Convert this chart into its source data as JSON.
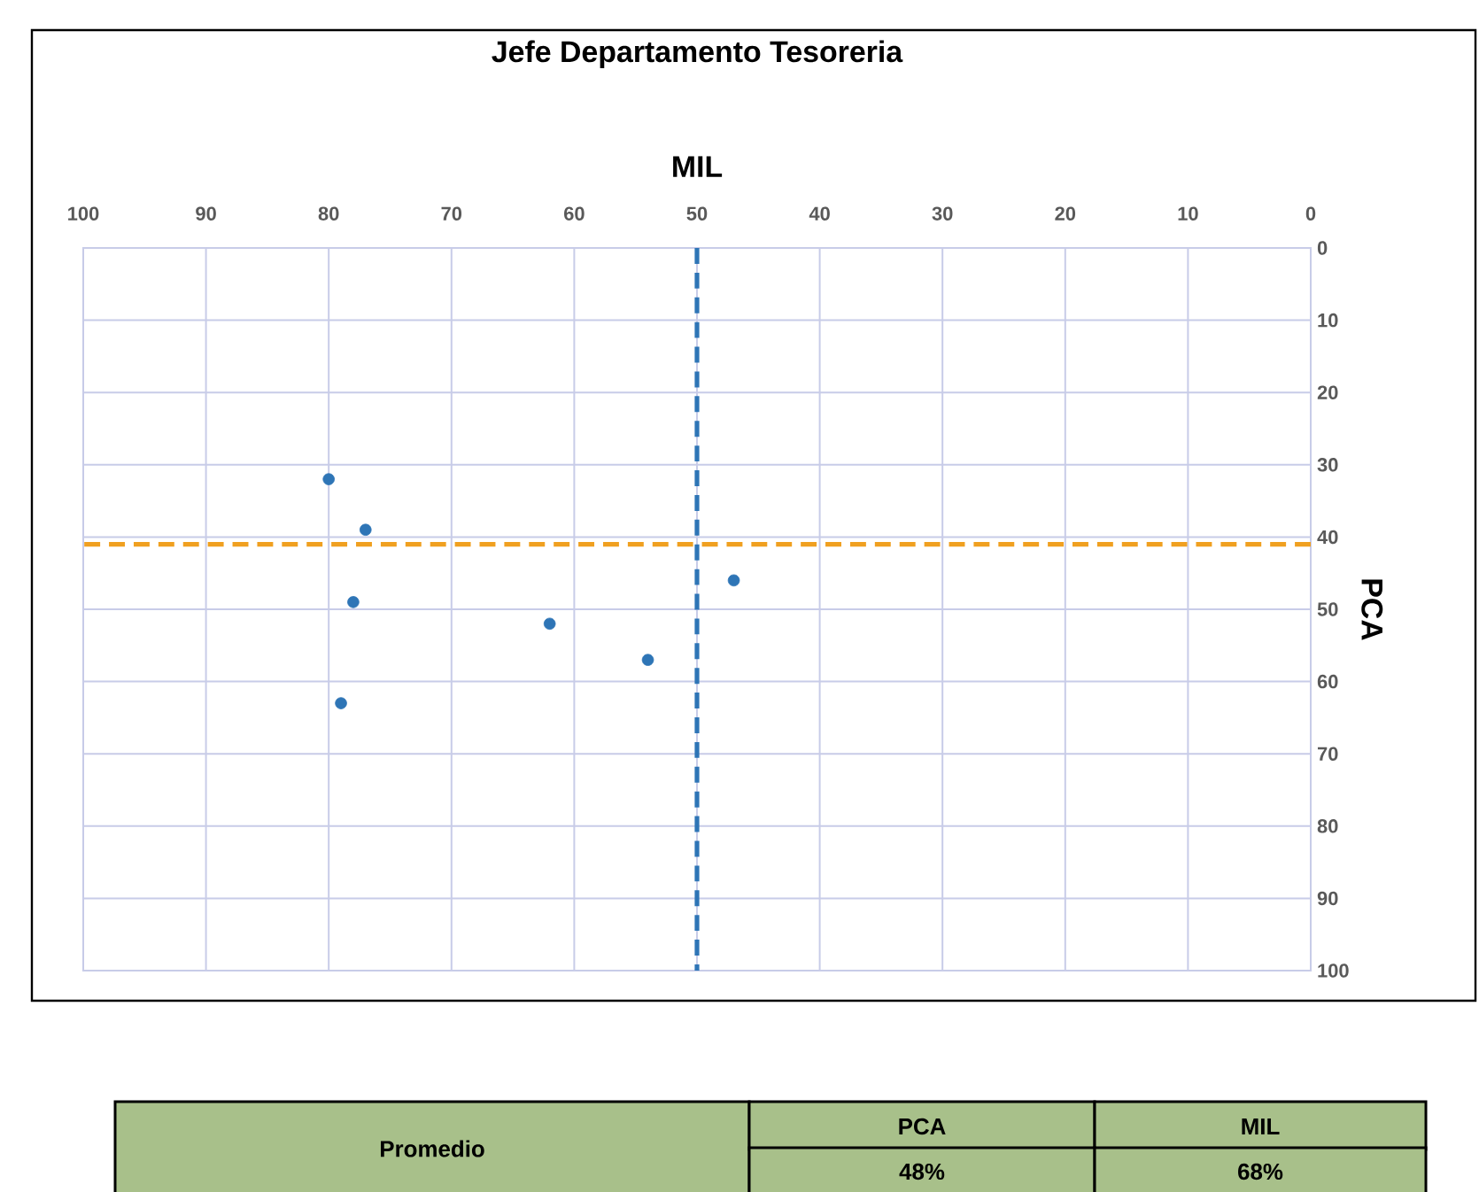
{
  "chart_data": {
    "type": "scatter",
    "title": "Jefe Departamento Tesoreria",
    "xlabel": "MIL",
    "ylabel": "PCA",
    "x": [
      80,
      77,
      78,
      79,
      62,
      54,
      47
    ],
    "values": [
      32,
      39,
      49,
      63,
      52,
      57,
      46
    ],
    "color": "#2e75b6",
    "xlim": [
      100,
      0
    ],
    "ylim": [
      100,
      0
    ],
    "xticks": [
      100,
      90,
      80,
      70,
      60,
      50,
      40,
      30,
      20,
      10,
      0
    ],
    "yticks": [
      0,
      10,
      20,
      30,
      40,
      50,
      60,
      70,
      80,
      90,
      100
    ],
    "grid": true,
    "ref_lines": [
      {
        "axis": "x",
        "value": 50,
        "color": "#2e75b6",
        "line_style": "dashed"
      },
      {
        "axis": "y",
        "value": 41,
        "color": "#f0a020",
        "line_style": "dashed"
      }
    ],
    "annotations": [
      "Promedio",
      "PCA",
      "MIL",
      "48%",
      "68%"
    ]
  }
}
